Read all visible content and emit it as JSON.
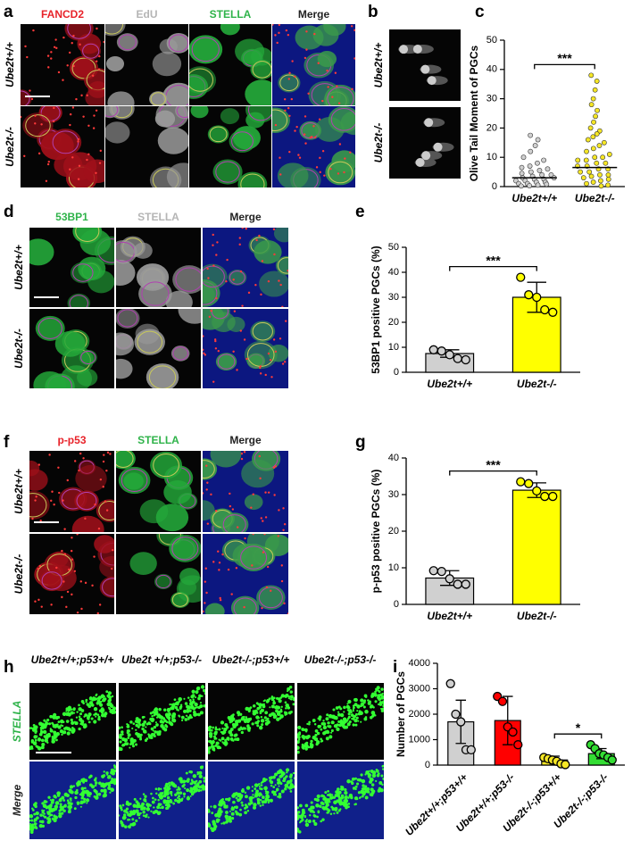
{
  "figure": {
    "a": {
      "letter": "a",
      "channels": [
        "FANCD2",
        "EdU",
        "STELLA",
        "Merge"
      ],
      "channel_colors": [
        "#e8232a",
        "#b5b5b5",
        "#2fb34a",
        "#222222"
      ],
      "rows": [
        "Ube2t+/+",
        "Ube2t-/-"
      ]
    },
    "b": {
      "letter": "b",
      "rows": [
        "Ube2t+/+",
        "Ube2t-/-"
      ]
    },
    "c": {
      "letter": "c"
    },
    "d": {
      "letter": "d",
      "channels": [
        "53BP1",
        "STELLA",
        "Merge"
      ],
      "channel_colors": [
        "#2fb34a",
        "#b5b5b5",
        "#222222"
      ],
      "rows": [
        "Ube2t+/+",
        "Ube2t-/-"
      ]
    },
    "e": {
      "letter": "e"
    },
    "f": {
      "letter": "f",
      "channels": [
        "p-p53",
        "STELLA",
        "Merge"
      ],
      "channel_colors": [
        "#e8232a",
        "#2fb34a",
        "#222222"
      ],
      "rows": [
        "Ube2t+/+",
        "Ube2t-/-"
      ]
    },
    "g": {
      "letter": "g"
    },
    "h": {
      "letter": "h",
      "columns": [
        "Ube2t+/+;p53+/+",
        "Ube2t +/+;p53-/-",
        "Ube2t-/-;p53+/+",
        "Ube2t-/-;p53-/-"
      ],
      "rows": [
        "STELLA",
        "Merge"
      ],
      "row_colors": [
        "#2fb34a",
        "#222222"
      ]
    },
    "i": {
      "letter": "i"
    }
  },
  "chart_data": [
    {
      "type": "strip",
      "ylabel": "Olive Tail Moment of PGCs",
      "categories": [
        "Ube2t+/+",
        "Ube2t-/-"
      ],
      "series": [
        {
          "name": "Ube2t+/+",
          "color": "#d0d0d0",
          "values": [
            17.5,
            16,
            14,
            12,
            10,
            9,
            8,
            7,
            6.5,
            6,
            5.5,
            5,
            4.5,
            4,
            4,
            3.5,
            3,
            3,
            2.5,
            2.5,
            2,
            2,
            1.5,
            1.5,
            1,
            1,
            0.8,
            0.5,
            0.3,
            0.2
          ]
        },
        {
          "name": "Ube2t-/-",
          "color": "#f5e625",
          "values": [
            38,
            36,
            33,
            30,
            28,
            26,
            24,
            22,
            20,
            19,
            18,
            17,
            16,
            15,
            14,
            13,
            12,
            11,
            10,
            10,
            9,
            9,
            8,
            8,
            7,
            7,
            6,
            6,
            5,
            5,
            4,
            4,
            3.5,
            3,
            2.5,
            2,
            1.5,
            1,
            0.5,
            0.2
          ]
        }
      ],
      "means": [
        3,
        6.5
      ],
      "significance": {
        "label": "***",
        "between": [
          0,
          1
        ]
      },
      "ylim": [
        0,
        50
      ],
      "yticks": [
        0,
        10,
        20,
        30,
        40,
        50
      ]
    },
    {
      "type": "bar",
      "ylabel": "53BP1 positive PGCs (%)",
      "categories": [
        "Ube2t+/+",
        "Ube2t-/-"
      ],
      "values": [
        7.5,
        30
      ],
      "errors": [
        1.5,
        6
      ],
      "colors": [
        "#d0d0d0",
        "#ffff00"
      ],
      "points": [
        [
          9,
          8.5,
          7,
          5.5,
          5
        ],
        [
          38,
          31,
          30,
          25,
          24
        ]
      ],
      "significance": {
        "label": "***",
        "between": [
          0,
          1
        ]
      },
      "ylim": [
        0,
        50
      ],
      "yticks": [
        0,
        10,
        20,
        30,
        40,
        50
      ]
    },
    {
      "type": "bar",
      "ylabel": "p-p53 positive PGCs (%)",
      "categories": [
        "Ube2t+/+",
        "Ube2t-/-"
      ],
      "values": [
        7.2,
        31.2
      ],
      "errors": [
        2,
        2
      ],
      "colors": [
        "#d0d0d0",
        "#ffff00"
      ],
      "points": [
        [
          9.2,
          9,
          7,
          5.5,
          5.5
        ],
        [
          33.5,
          33,
          31,
          29.5,
          29.5
        ]
      ],
      "significance": {
        "label": "***",
        "between": [
          0,
          1
        ]
      },
      "ylim": [
        0,
        40
      ],
      "yticks": [
        0,
        10,
        20,
        30,
        40
      ]
    },
    {
      "type": "bar",
      "ylabel": "Number of PGCs",
      "categories": [
        "Ube2t+/+;p53+/+",
        "Ube2t+/+;p53-/-",
        "Ube2t-/-;p53+/+",
        "Ube2t-/-;p53-/-"
      ],
      "values": [
        1700,
        1750,
        200,
        450
      ],
      "errors": [
        850,
        950,
        150,
        200
      ],
      "colors": [
        "#d0d0d0",
        "#ff0000",
        "#f5e625",
        "#33dd33"
      ],
      "points": [
        [
          3200,
          2000,
          1700,
          600,
          600
        ],
        [
          2700,
          2500,
          1500,
          1300,
          800
        ],
        [
          300,
          250,
          200,
          150,
          50,
          20
        ],
        [
          800,
          650,
          450,
          400,
          300,
          200
        ]
      ],
      "significance": {
        "label": "*",
        "between": [
          2,
          3
        ]
      },
      "rotate_labels": true,
      "ylim": [
        0,
        4000
      ],
      "yticks": [
        0,
        1000,
        2000,
        3000,
        4000
      ]
    }
  ]
}
